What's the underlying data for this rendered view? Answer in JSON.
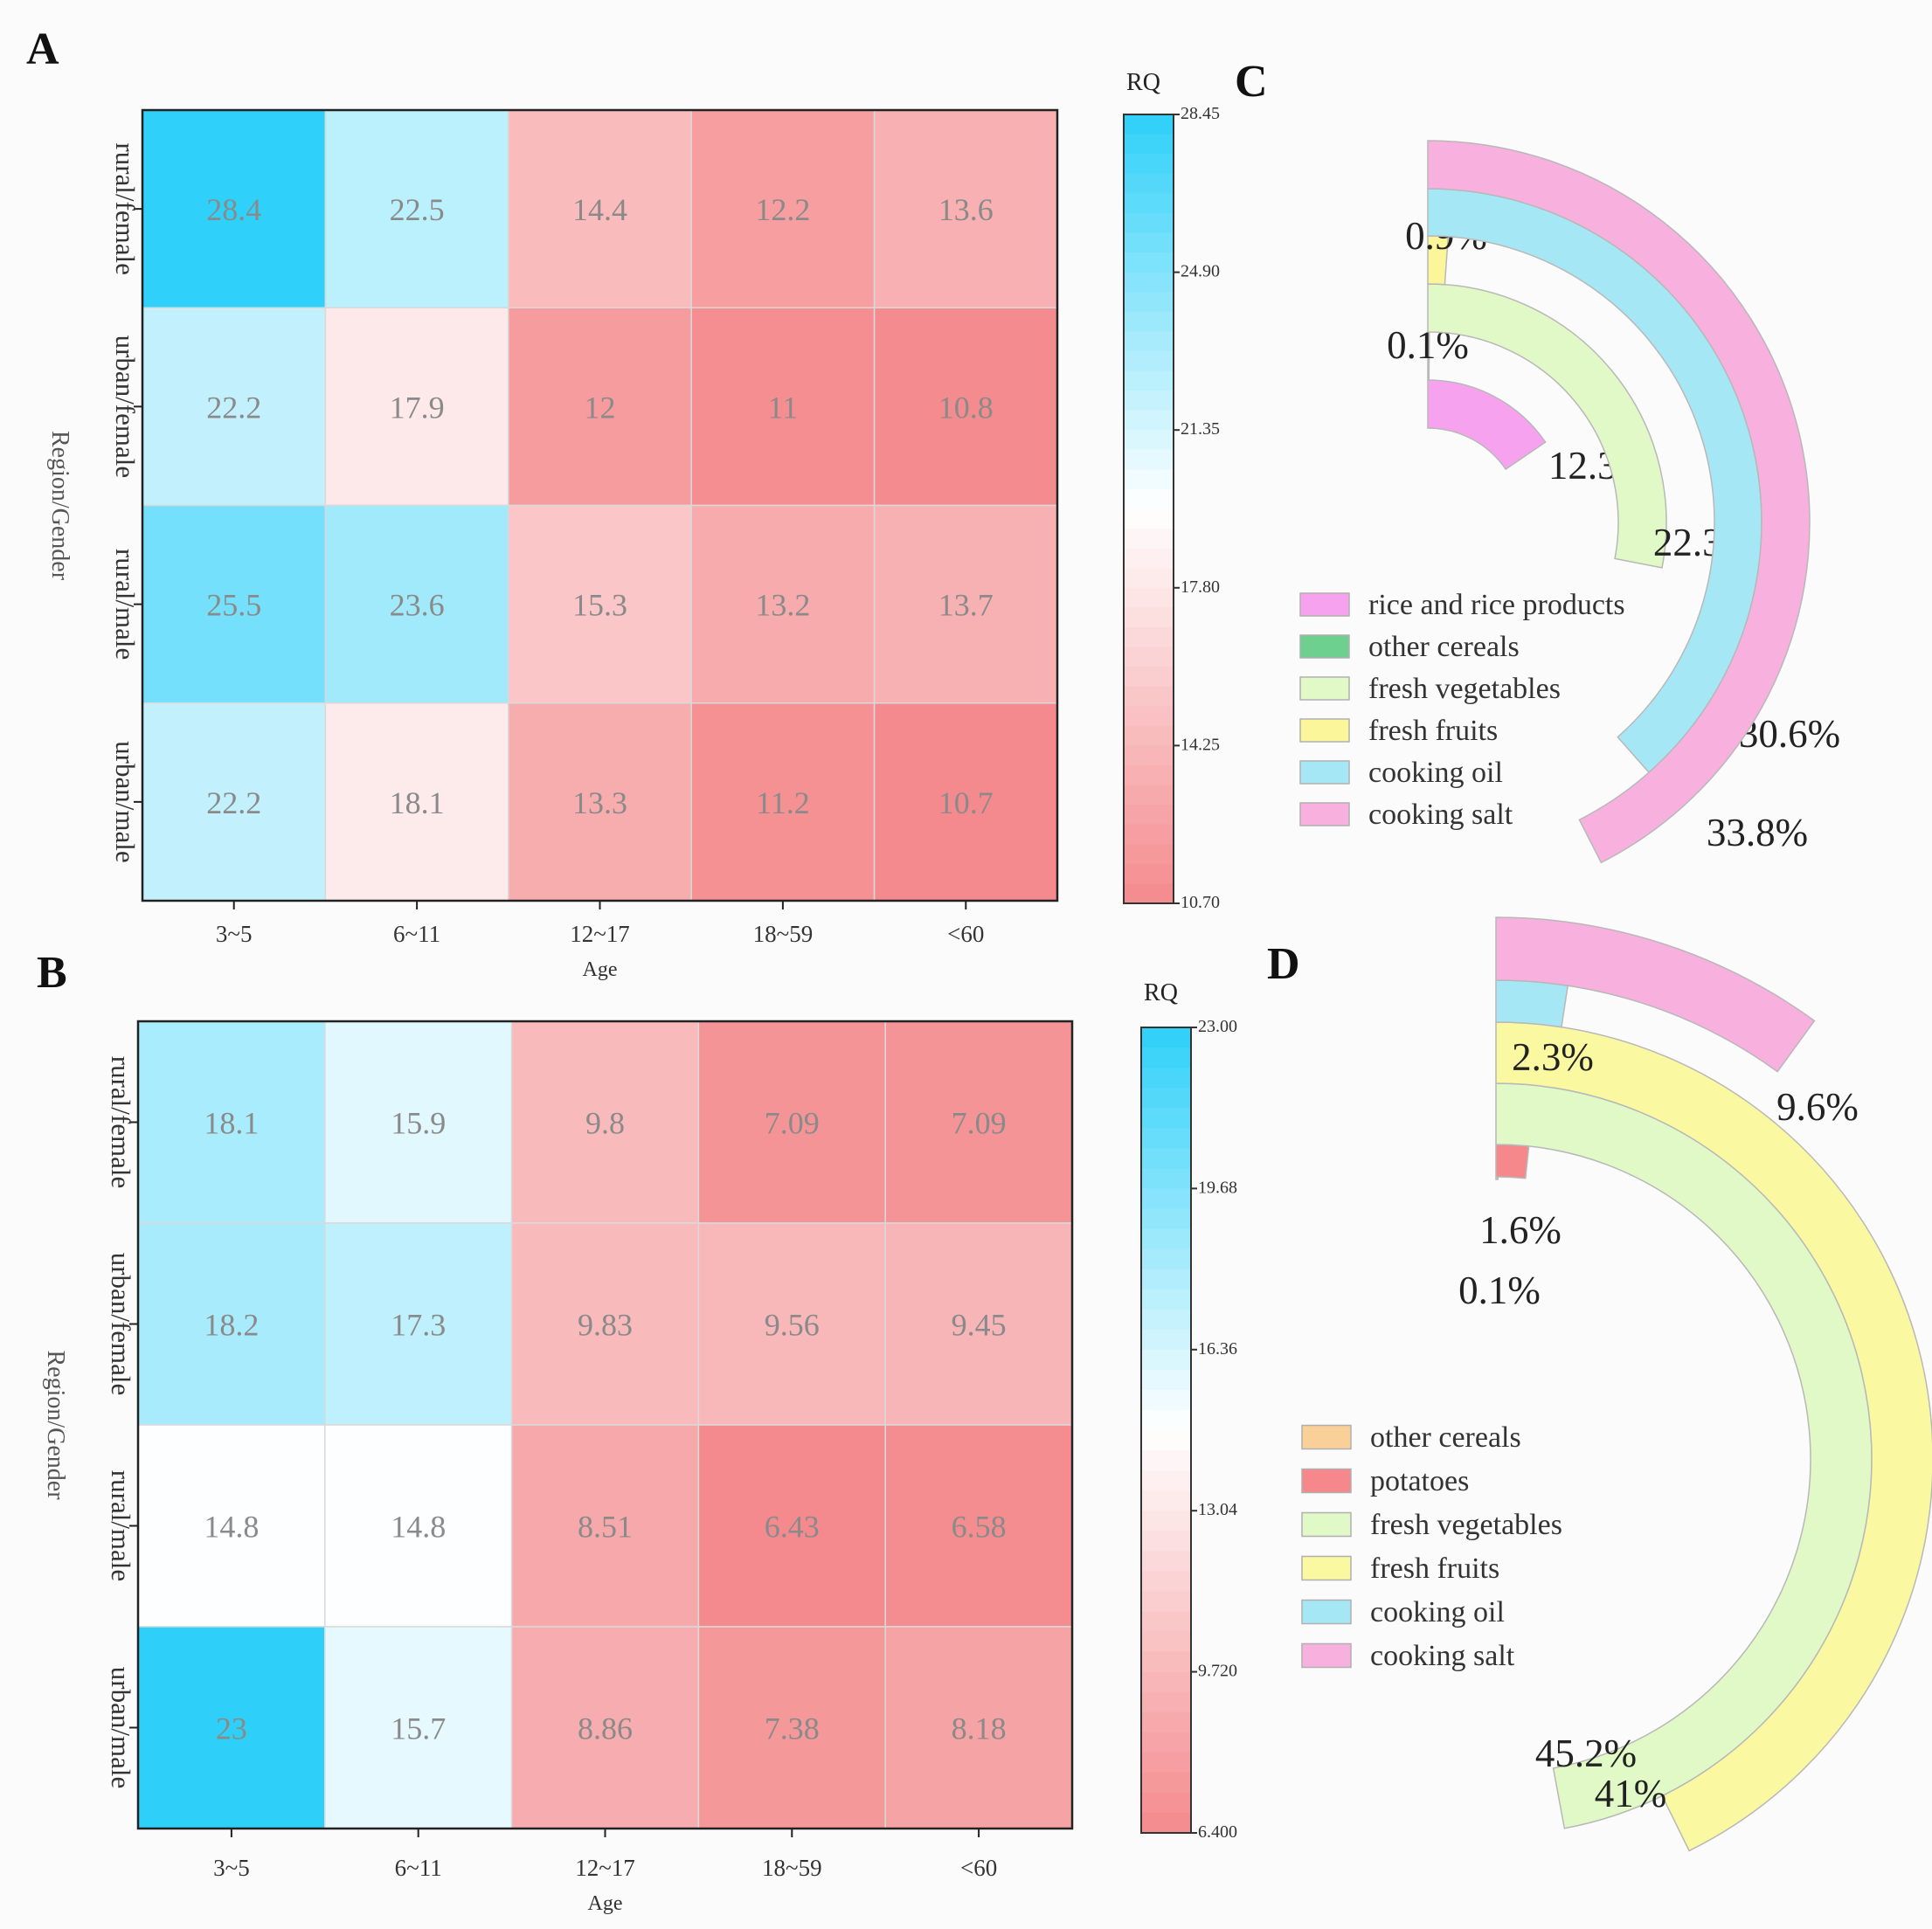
{
  "chart_data": [
    {
      "panel": "A",
      "type": "heatmap",
      "xlabel": "Age",
      "ylabel": "Region/Gender",
      "x_categories": [
        "3~5",
        "6~11",
        "12~17",
        "18~59",
        "<60"
      ],
      "y_categories": [
        "rural/female",
        "urban/female",
        "rural/male",
        "urban/male"
      ],
      "values": [
        [
          "28.4",
          "22.5",
          "14.4",
          "12.2",
          "13.6"
        ],
        [
          "22.2",
          "17.9",
          "12",
          "11",
          "10.8"
        ],
        [
          "25.5",
          "23.6",
          "15.3",
          "13.2",
          "13.7"
        ],
        [
          "22.2",
          "18.1",
          "13.3",
          "11.2",
          "10.7"
        ]
      ],
      "colorbar": {
        "title": "RQ",
        "min": 10.7,
        "max": 28.45,
        "ticks": [
          "28.45",
          "24.90",
          "21.35",
          "17.80",
          "14.25",
          "10.70"
        ],
        "low_color": "#f48a8d",
        "mid_color": "#ffffff",
        "high_color": "#2ed0f9",
        "mid_value": 19.6
      }
    },
    {
      "panel": "B",
      "type": "heatmap",
      "xlabel": "Age",
      "ylabel": "Region/Gender",
      "x_categories": [
        "3~5",
        "6~11",
        "12~17",
        "18~59",
        "<60"
      ],
      "y_categories": [
        "rural/female",
        "urban/female",
        "rural/male",
        "urban/male"
      ],
      "values": [
        [
          "18.1",
          "15.9",
          "9.8",
          "7.09",
          "7.09"
        ],
        [
          "18.2",
          "17.3",
          "9.83",
          "9.56",
          "9.45"
        ],
        [
          "14.8",
          "14.8",
          "8.51",
          "6.43",
          "6.58"
        ],
        [
          "23",
          "15.7",
          "8.86",
          "7.38",
          "8.18"
        ]
      ],
      "colorbar": {
        "title": "RQ",
        "min": 6.4,
        "max": 23.0,
        "ticks": [
          "23.00",
          "19.68",
          "16.36",
          "13.04",
          "9.720",
          "6.400"
        ],
        "low_color": "#f48a8d",
        "mid_color": "#ffffff",
        "high_color": "#2ed0f9",
        "mid_value": 14.7
      }
    },
    {
      "panel": "C",
      "type": "radial-bar",
      "max_value": 33.8,
      "legend": [
        "rice and rice products",
        "other cereals",
        "fresh vegetables",
        "fresh fruits",
        "cooking oil",
        "cooking salt"
      ],
      "series": [
        {
          "name": "rice and rice products",
          "value": 12.3,
          "label": "12.3%",
          "color": "#f7a2ef"
        },
        {
          "name": "other cereals",
          "value": 0.1,
          "label": "0.1%",
          "color": "#6dd08f"
        },
        {
          "name": "fresh vegetables",
          "value": 22.3,
          "label": "22.3%",
          "color": "#e1f9c6"
        },
        {
          "name": "fresh fruits",
          "value": 0.9,
          "label": "0.9%",
          "color": "#fbf69a"
        },
        {
          "name": "cooking oil",
          "value": 30.6,
          "label": "30.6%",
          "color": "#a6e7f6"
        },
        {
          "name": "cooking salt",
          "value": 33.8,
          "label": "33.8%",
          "color": "#f8b0df"
        }
      ]
    },
    {
      "panel": "D",
      "type": "radial-bar",
      "max_value": 45.2,
      "legend": [
        "other cereals",
        "potatoes",
        "fresh vegetables",
        "fresh fruits",
        "cooking oil",
        "cooking salt"
      ],
      "series": [
        {
          "name": "other cereals",
          "value": 0.1,
          "label": "0.1%",
          "color": "#fbcf98"
        },
        {
          "name": "potatoes",
          "value": 1.6,
          "label": "1.6%",
          "color": "#f6878a"
        },
        {
          "name": "fresh vegetables",
          "value": 45.2,
          "label": "45.2%",
          "color": "#e1f9c6"
        },
        {
          "name": "fresh fruits",
          "value": 41,
          "label": "41%",
          "color": "#fbf8a2"
        },
        {
          "name": "cooking oil",
          "value": 2.3,
          "label": "2.3%",
          "color": "#a6e7f6"
        },
        {
          "name": "cooking salt",
          "value": 9.6,
          "label": "9.6%",
          "color": "#f8b0df"
        }
      ]
    }
  ],
  "panel_labels": [
    "A",
    "B",
    "C",
    "D"
  ]
}
